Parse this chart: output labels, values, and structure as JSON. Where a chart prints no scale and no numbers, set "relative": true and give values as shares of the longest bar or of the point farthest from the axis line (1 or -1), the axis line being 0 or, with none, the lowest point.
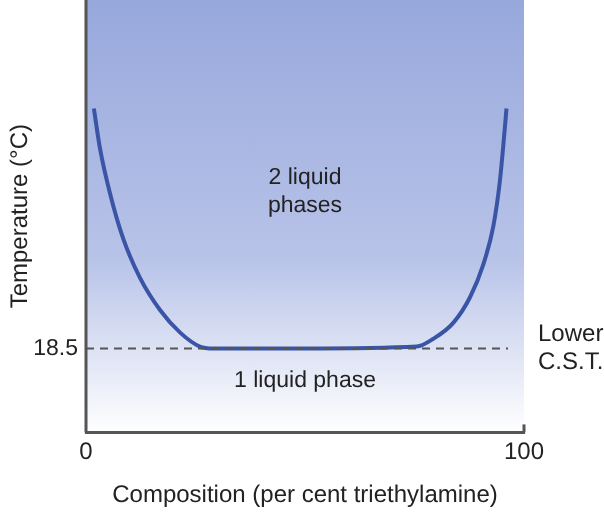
{
  "chart_data": {
    "type": "line",
    "relative": true,
    "xlabel": "Composition (per cent triethylamine)",
    "ylabel": "Temperature (°C)",
    "xlim": [
      0,
      100
    ],
    "xticks": [
      0,
      100
    ],
    "grid": false,
    "legend": false,
    "marker": "none",
    "line_style": "solid",
    "series": [
      {
        "color": "#3b55a6",
        "x": [
          1.8,
          3.2,
          5.5,
          8.5,
          12.3,
          16.9,
          21.5,
          26.0,
          29.1,
          50,
          75.5,
          79.3,
          83.9,
          87.7,
          90.7,
          93.0,
          94.5,
          95.6,
          96.0
        ],
        "values": [
          1.0,
          0.876,
          0.737,
          0.598,
          0.478,
          0.378,
          0.308,
          0.265,
          0.259,
          0.259,
          0.265,
          0.289,
          0.339,
          0.418,
          0.518,
          0.637,
          0.777,
          0.936,
          1.0
        ]
      }
    ],
    "ref_lines": [
      {
        "axis": "y",
        "value": 0.259,
        "label": "Lower C.S.T.",
        "color": "#555555",
        "line_style": "dashed"
      }
    ],
    "annotations": [
      "2 liquid phases",
      "1 liquid phase",
      "18.5"
    ]
  }
}
